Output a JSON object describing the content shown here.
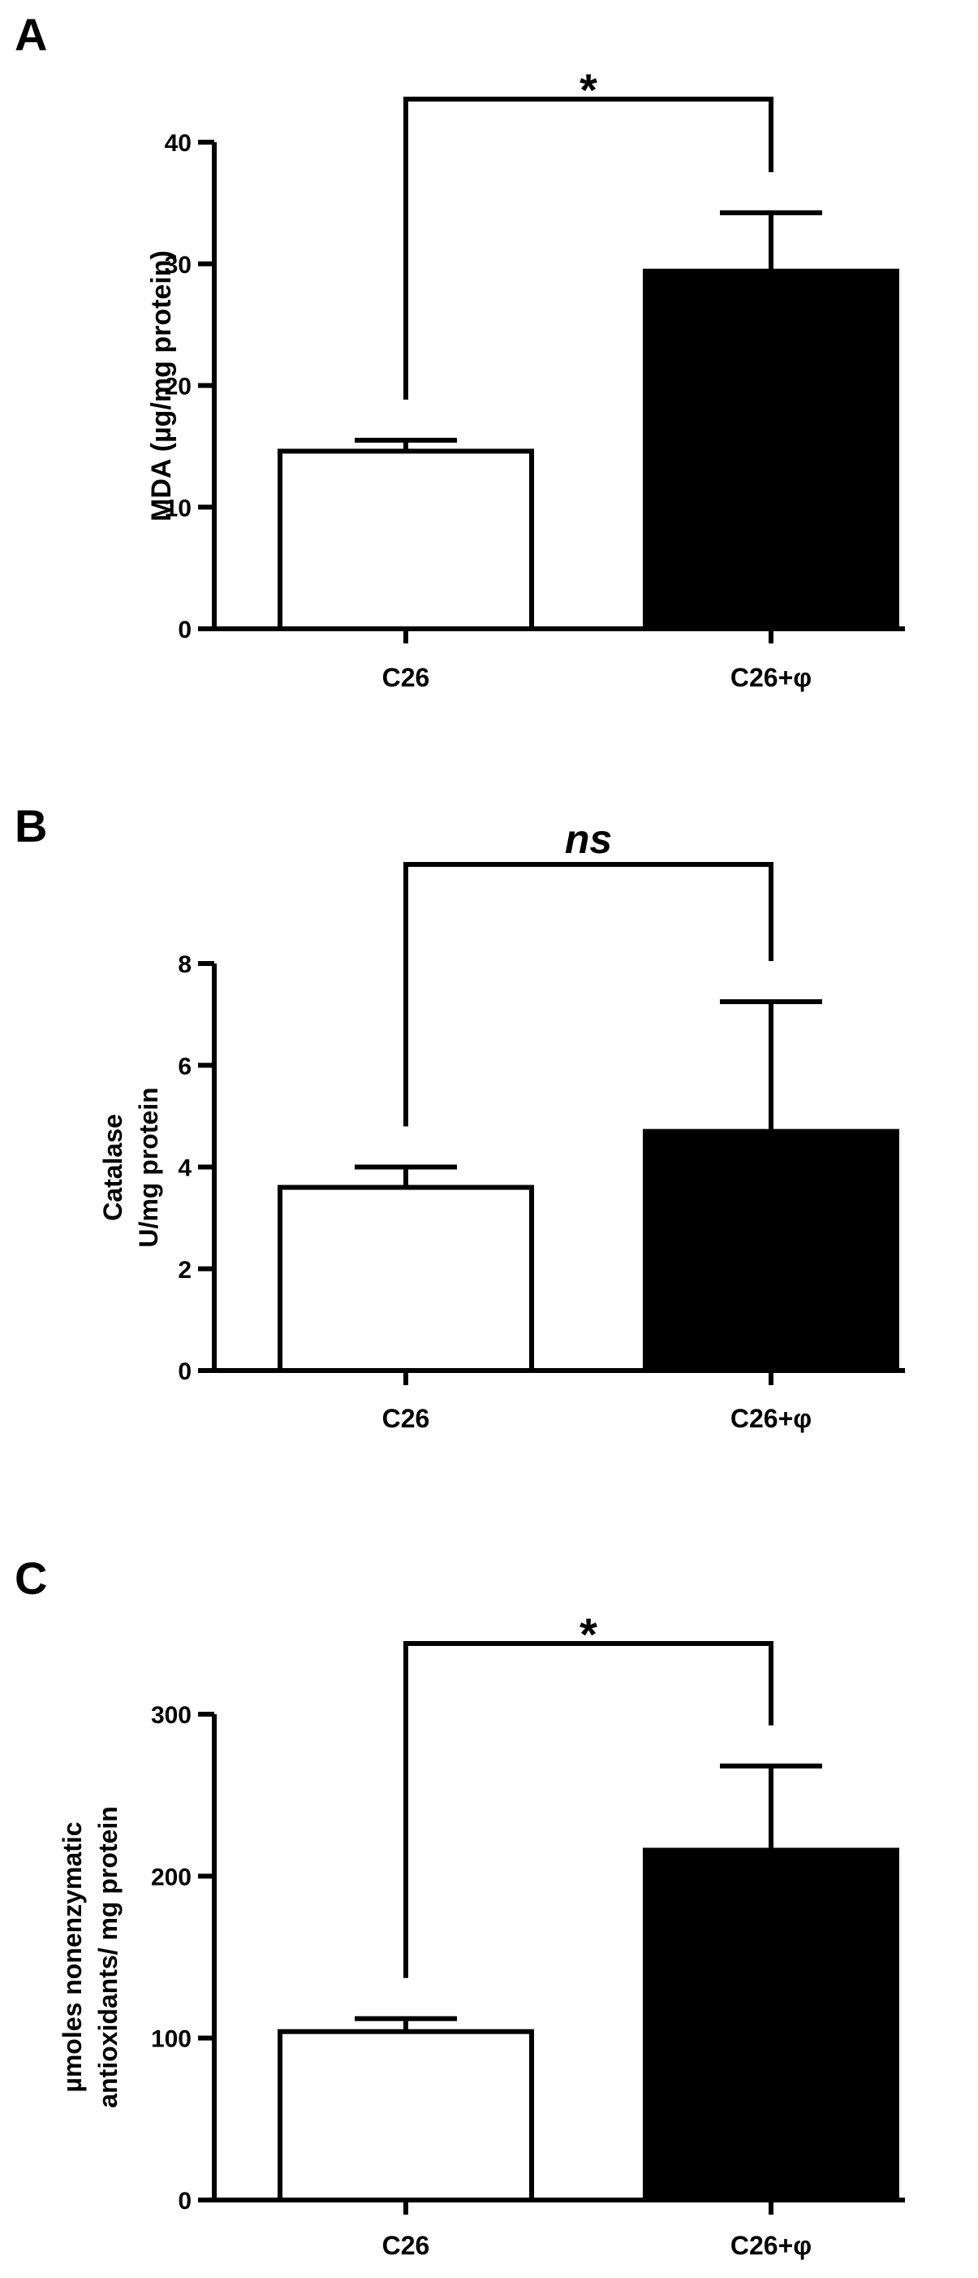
{
  "chart_data": [
    {
      "type": "bar",
      "panel": "A",
      "categories": [
        "C26",
        "C26+φ"
      ],
      "values": [
        14.6,
        29.4
      ],
      "error": [
        0.9,
        4.8
      ],
      "colors": [
        "#ffffff",
        "#000000"
      ],
      "ylabel_lines": [
        "MDA (µg/mg protein)"
      ],
      "ylim": [
        0,
        40
      ],
      "yticks": [
        0,
        10,
        20,
        30,
        40
      ],
      "significance": "*",
      "grid": false
    },
    {
      "type": "bar",
      "panel": "B",
      "categories": [
        "C26",
        "C26+φ"
      ],
      "values": [
        3.6,
        4.7
      ],
      "error": [
        0.4,
        2.55
      ],
      "colors": [
        "#ffffff",
        "#000000"
      ],
      "ylabel_lines": [
        "Catalase",
        "U/mg protein"
      ],
      "ylim": [
        0,
        8
      ],
      "yticks": [
        0,
        2,
        4,
        6,
        8
      ],
      "significance": "ns",
      "grid": false
    },
    {
      "type": "bar",
      "panel": "C",
      "categories": [
        "C26",
        "C26+φ"
      ],
      "values": [
        104,
        216
      ],
      "error": [
        8,
        52
      ],
      "colors": [
        "#ffffff",
        "#000000"
      ],
      "ylabel_lines": [
        "µmoles nonenzymatic",
        "antioxidants/ mg protein"
      ],
      "ylim": [
        0,
        300
      ],
      "yticks": [
        0,
        100,
        200,
        300
      ],
      "significance": "*",
      "grid": false
    }
  ]
}
